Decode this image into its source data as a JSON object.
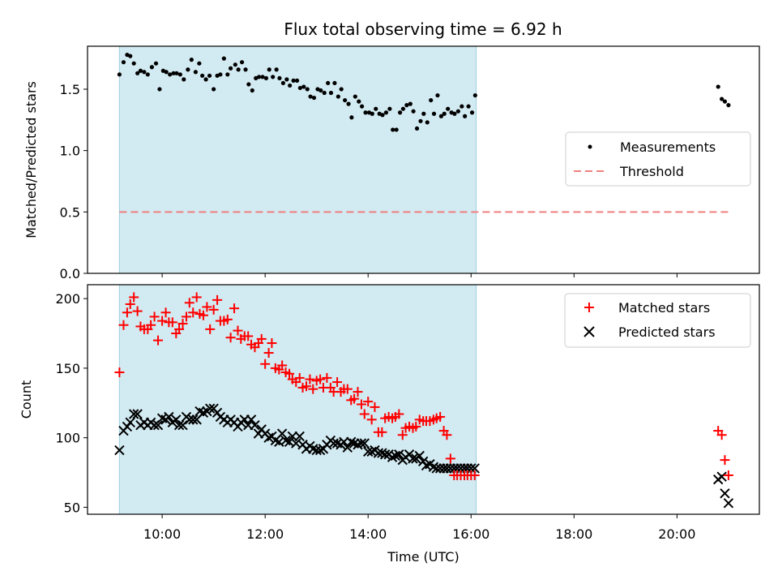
{
  "chart_data": [
    {
      "type": "scatter",
      "title": "Flux total observing time = 6.92 h",
      "ylabel": "Matched/Predicted stars",
      "xlabel": "",
      "xlim": [
        8.55,
        21.6
      ],
      "ylim": [
        0,
        1.85
      ],
      "yticks": [
        0.0,
        0.5,
        1.0,
        1.5
      ],
      "ytick_labels": [
        "0.0",
        "0.5",
        "1.0",
        "1.5"
      ],
      "shaded_span": [
        9.17,
        16.1
      ],
      "threshold": {
        "value": 0.5,
        "from": 9.17,
        "to": 21.0,
        "label": "Threshold",
        "color": "#f08080"
      },
      "legend": {
        "position": "center-right",
        "entries": [
          "Measurements",
          "Threshold"
        ]
      },
      "series": [
        {
          "name": "Measurements",
          "color": "#000000",
          "x": [
            9.17,
            9.25,
            9.32,
            9.38,
            9.45,
            9.52,
            9.58,
            9.65,
            9.72,
            9.8,
            9.88,
            9.95,
            10.02,
            10.08,
            10.15,
            10.22,
            10.28,
            10.35,
            10.42,
            10.5,
            10.57,
            10.65,
            10.72,
            10.78,
            10.85,
            10.92,
            11.0,
            11.07,
            11.13,
            11.2,
            11.27,
            11.33,
            11.42,
            11.48,
            11.55,
            11.62,
            11.68,
            11.75,
            11.82,
            11.88,
            11.95,
            12.02,
            12.08,
            12.15,
            12.22,
            12.28,
            12.35,
            12.42,
            12.48,
            12.55,
            12.62,
            12.68,
            12.75,
            12.82,
            12.88,
            12.95,
            13.02,
            13.08,
            13.15,
            13.22,
            13.28,
            13.35,
            13.42,
            13.48,
            13.55,
            13.62,
            13.68,
            13.75,
            13.82,
            13.88,
            13.95,
            14.02,
            14.08,
            14.15,
            14.22,
            14.28,
            14.35,
            14.42,
            14.48,
            14.55,
            14.62,
            14.68,
            14.75,
            14.82,
            14.88,
            14.95,
            15.02,
            15.08,
            15.15,
            15.22,
            15.28,
            15.35,
            15.42,
            15.48,
            15.55,
            15.62,
            15.68,
            15.75,
            15.82,
            15.88,
            15.95,
            16.02,
            16.08,
            20.8,
            20.87,
            20.93,
            21.0
          ],
          "y": [
            1.62,
            1.72,
            1.78,
            1.77,
            1.71,
            1.63,
            1.65,
            1.64,
            1.62,
            1.68,
            1.71,
            1.5,
            1.65,
            1.64,
            1.62,
            1.63,
            1.63,
            1.62,
            1.58,
            1.66,
            1.74,
            1.64,
            1.71,
            1.61,
            1.58,
            1.61,
            1.5,
            1.61,
            1.62,
            1.75,
            1.62,
            1.67,
            1.7,
            1.66,
            1.72,
            1.66,
            1.54,
            1.49,
            1.59,
            1.6,
            1.6,
            1.59,
            1.66,
            1.6,
            1.66,
            1.59,
            1.55,
            1.58,
            1.53,
            1.57,
            1.57,
            1.51,
            1.52,
            1.5,
            1.44,
            1.43,
            1.5,
            1.49,
            1.47,
            1.55,
            1.47,
            1.55,
            1.44,
            1.5,
            1.41,
            1.38,
            1.27,
            1.44,
            1.4,
            1.36,
            1.31,
            1.31,
            1.3,
            1.34,
            1.3,
            1.29,
            1.31,
            1.34,
            1.17,
            1.17,
            1.31,
            1.34,
            1.37,
            1.38,
            1.32,
            1.18,
            1.24,
            1.3,
            1.23,
            1.41,
            1.3,
            1.45,
            1.28,
            1.3,
            1.34,
            1.31,
            1.3,
            1.32,
            1.36,
            1.28,
            1.36,
            1.31,
            1.45,
            1.52,
            1.42,
            1.4,
            1.37
          ]
        }
      ]
    },
    {
      "type": "scatter",
      "title": "",
      "ylabel": "Count",
      "xlabel": "Time (UTC)",
      "xlim": [
        8.55,
        21.6
      ],
      "ylim": [
        45,
        210
      ],
      "yticks": [
        50,
        100,
        150,
        200
      ],
      "ytick_labels": [
        "50",
        "100",
        "150",
        "200"
      ],
      "xticks": [
        10,
        12,
        14,
        16,
        18,
        20
      ],
      "xtick_labels": [
        "10:00",
        "12:00",
        "14:00",
        "16:00",
        "18:00",
        "20:00"
      ],
      "shaded_span": [
        9.17,
        16.1
      ],
      "legend": {
        "position": "top-right",
        "entries": [
          "Matched stars",
          "Predicted stars"
        ]
      },
      "series": [
        {
          "name": "Matched stars",
          "color": "#ff0000",
          "marker": "plus",
          "x": [
            9.17,
            9.25,
            9.32,
            9.38,
            9.45,
            9.52,
            9.58,
            9.65,
            9.72,
            9.78,
            9.85,
            9.92,
            10.0,
            10.07,
            10.13,
            10.2,
            10.27,
            10.33,
            10.4,
            10.47,
            10.53,
            10.6,
            10.67,
            10.73,
            10.8,
            10.87,
            10.93,
            11.0,
            11.07,
            11.13,
            11.2,
            11.27,
            11.33,
            11.4,
            11.47,
            11.53,
            11.6,
            11.67,
            11.73,
            11.8,
            11.87,
            11.93,
            12.0,
            12.07,
            12.13,
            12.2,
            12.27,
            12.33,
            12.4,
            12.47,
            12.53,
            12.6,
            12.67,
            12.73,
            12.8,
            12.87,
            12.93,
            13.0,
            13.07,
            13.13,
            13.2,
            13.27,
            13.33,
            13.4,
            13.47,
            13.53,
            13.6,
            13.67,
            13.73,
            13.8,
            13.87,
            13.93,
            14.0,
            14.07,
            14.13,
            14.2,
            14.27,
            14.33,
            14.4,
            14.47,
            14.53,
            14.6,
            14.67,
            14.73,
            14.8,
            14.87,
            14.93,
            15.0,
            15.07,
            15.13,
            15.2,
            15.27,
            15.33,
            15.4,
            15.47,
            15.53,
            15.6,
            15.67,
            15.73,
            15.8,
            15.87,
            15.93,
            16.0,
            16.07,
            20.8,
            20.87,
            20.93,
            21.0
          ],
          "y": [
            147,
            181,
            190,
            196,
            201,
            191,
            180,
            178,
            178,
            181,
            187,
            170,
            184,
            190,
            183,
            183,
            175,
            178,
            182,
            187,
            197,
            190,
            201,
            189,
            188,
            194,
            178,
            192,
            199,
            184,
            184,
            185,
            172,
            193,
            177,
            171,
            173,
            173,
            167,
            165,
            168,
            171,
            153,
            161,
            168,
            150,
            149,
            152,
            147,
            146,
            142,
            140,
            143,
            136,
            137,
            142,
            135,
            141,
            142,
            136,
            143,
            136,
            133,
            140,
            133,
            135,
            135,
            127,
            128,
            133,
            124,
            117,
            126,
            113,
            122,
            104,
            104,
            114,
            115,
            114,
            115,
            117,
            102,
            107,
            108,
            107,
            108,
            113,
            112,
            112,
            112,
            113,
            114,
            115,
            105,
            102,
            85,
            73,
            73,
            73,
            73,
            73,
            73,
            73,
            105,
            102,
            84,
            73
          ]
        },
        {
          "name": "Predicted stars",
          "color": "#000000",
          "marker": "x",
          "x": [
            9.17,
            9.25,
            9.32,
            9.38,
            9.45,
            9.52,
            9.58,
            9.65,
            9.72,
            9.78,
            9.85,
            9.92,
            10.0,
            10.07,
            10.13,
            10.2,
            10.27,
            10.33,
            10.4,
            10.47,
            10.53,
            10.6,
            10.67,
            10.73,
            10.8,
            10.87,
            10.93,
            11.0,
            11.07,
            11.13,
            11.2,
            11.27,
            11.33,
            11.4,
            11.47,
            11.53,
            11.6,
            11.67,
            11.73,
            11.8,
            11.87,
            11.93,
            12.0,
            12.07,
            12.13,
            12.2,
            12.27,
            12.33,
            12.4,
            12.47,
            12.53,
            12.6,
            12.67,
            12.73,
            12.8,
            12.87,
            12.93,
            13.0,
            13.07,
            13.13,
            13.2,
            13.27,
            13.33,
            13.4,
            13.47,
            13.53,
            13.6,
            13.67,
            13.73,
            13.8,
            13.87,
            13.93,
            14.0,
            14.07,
            14.13,
            14.2,
            14.27,
            14.33,
            14.4,
            14.47,
            14.53,
            14.6,
            14.67,
            14.73,
            14.8,
            14.87,
            14.93,
            15.0,
            15.07,
            15.13,
            15.2,
            15.27,
            15.33,
            15.4,
            15.47,
            15.53,
            15.6,
            15.67,
            15.73,
            15.8,
            15.87,
            15.93,
            16.0,
            16.07,
            20.8,
            20.87,
            20.93,
            21.0
          ],
          "y": [
            91,
            105,
            108,
            111,
            117,
            117,
            109,
            111,
            109,
            111,
            109,
            109,
            114,
            113,
            115,
            111,
            113,
            109,
            109,
            115,
            113,
            113,
            113,
            119,
            118,
            119,
            121,
            121,
            118,
            115,
            113,
            111,
            113,
            111,
            108,
            111,
            113,
            109,
            113,
            109,
            103,
            106,
            103,
            100,
            101,
            98,
            97,
            103,
            98,
            97,
            101,
            96,
            101,
            95,
            92,
            94,
            92,
            91,
            91,
            92,
            95,
            98,
            96,
            96,
            95,
            97,
            93,
            97,
            96,
            95,
            96,
            96,
            90,
            90,
            91,
            89,
            89,
            88,
            88,
            86,
            87,
            88,
            84,
            86,
            88,
            85,
            85,
            87,
            83,
            80,
            81,
            79,
            78,
            78,
            78,
            78,
            78,
            78,
            78,
            78,
            78,
            78,
            78,
            78,
            70,
            72,
            60,
            53
          ]
        }
      ]
    }
  ]
}
